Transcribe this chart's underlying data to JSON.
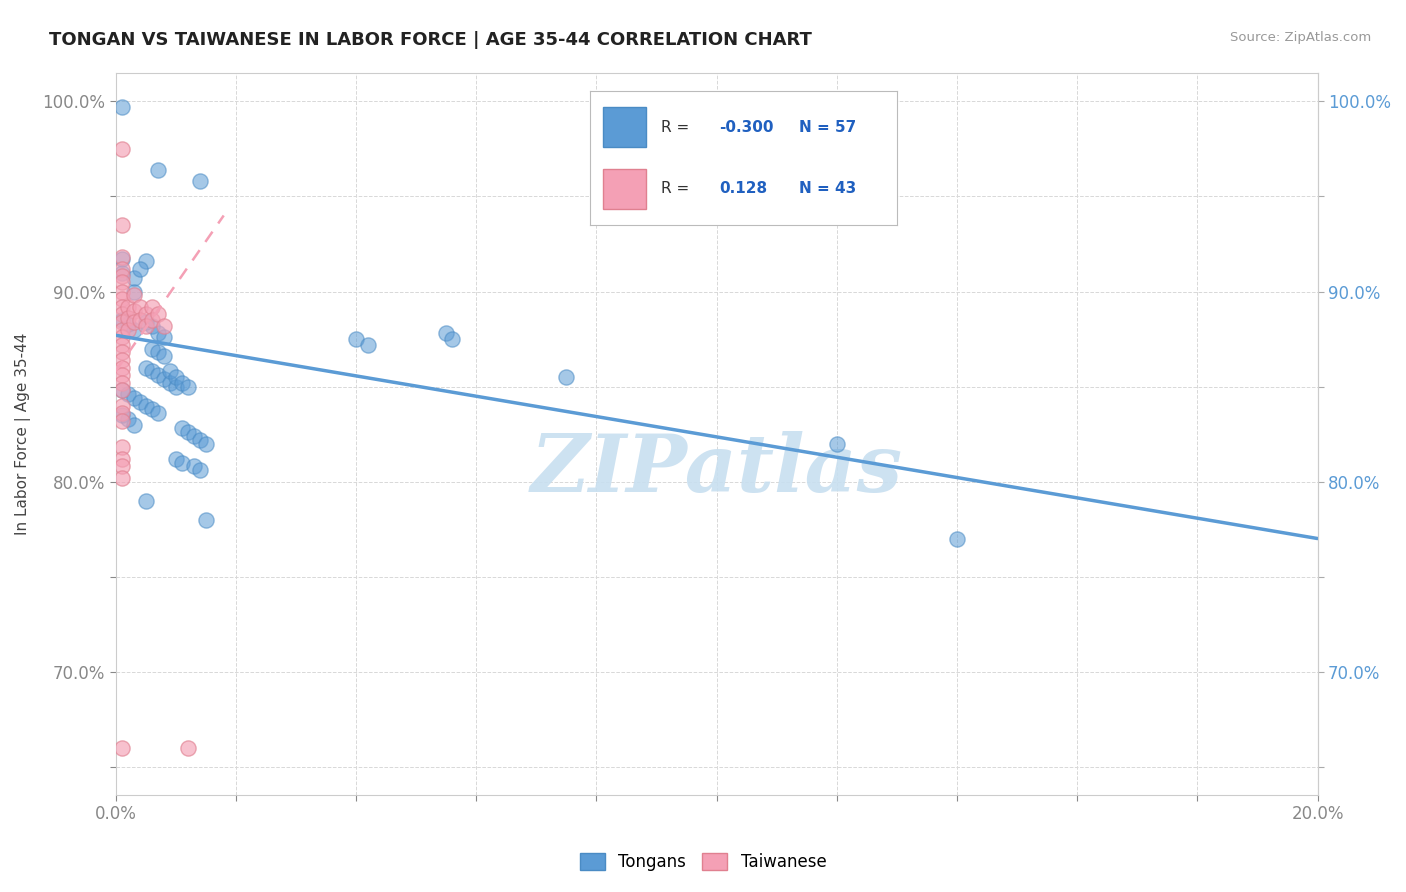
{
  "title": "TONGAN VS TAIWANESE IN LABOR FORCE | AGE 35-44 CORRELATION CHART",
  "source_text": "Source: ZipAtlas.com",
  "ylabel": "In Labor Force | Age 35-44",
  "xlim": [
    0.0,
    0.2
  ],
  "ylim": [
    0.635,
    1.015
  ],
  "xtick_positions": [
    0.0,
    0.02,
    0.04,
    0.06,
    0.08,
    0.1,
    0.12,
    0.14,
    0.16,
    0.18,
    0.2
  ],
  "xticklabels": [
    "0.0%",
    "",
    "",
    "",
    "",
    "",
    "",
    "",
    "",
    "",
    "20.0%"
  ],
  "ytick_positions": [
    0.65,
    0.7,
    0.75,
    0.8,
    0.85,
    0.9,
    0.95,
    1.0
  ],
  "yticklabels": [
    "",
    "70.0%",
    "",
    "80.0%",
    "",
    "90.0%",
    "",
    "100.0%"
  ],
  "tongan_R": -0.3,
  "tongan_N": 57,
  "taiwanese_R": 0.128,
  "taiwanese_N": 43,
  "tongan_color": "#5b9bd5",
  "tongan_edge": "#4a8bc4",
  "taiwanese_color": "#f4a0b5",
  "taiwanese_edge": "#e08090",
  "tongan_scatter": [
    [
      0.001,
      0.997
    ],
    [
      0.007,
      0.964
    ],
    [
      0.014,
      0.958
    ],
    [
      0.001,
      0.917
    ],
    [
      0.001,
      0.91
    ],
    [
      0.003,
      0.907
    ],
    [
      0.003,
      0.9
    ],
    [
      0.005,
      0.916
    ],
    [
      0.004,
      0.912
    ],
    [
      0.001,
      0.885
    ],
    [
      0.002,
      0.883
    ],
    [
      0.003,
      0.88
    ],
    [
      0.005,
      0.884
    ],
    [
      0.006,
      0.882
    ],
    [
      0.007,
      0.878
    ],
    [
      0.008,
      0.876
    ],
    [
      0.006,
      0.87
    ],
    [
      0.007,
      0.868
    ],
    [
      0.008,
      0.866
    ],
    [
      0.005,
      0.86
    ],
    [
      0.006,
      0.858
    ],
    [
      0.007,
      0.856
    ],
    [
      0.008,
      0.854
    ],
    [
      0.009,
      0.852
    ],
    [
      0.01,
      0.85
    ],
    [
      0.001,
      0.848
    ],
    [
      0.002,
      0.846
    ],
    [
      0.003,
      0.844
    ],
    [
      0.004,
      0.842
    ],
    [
      0.005,
      0.84
    ],
    [
      0.006,
      0.838
    ],
    [
      0.007,
      0.836
    ],
    [
      0.009,
      0.858
    ],
    [
      0.01,
      0.855
    ],
    [
      0.011,
      0.852
    ],
    [
      0.012,
      0.85
    ],
    [
      0.001,
      0.835
    ],
    [
      0.002,
      0.833
    ],
    [
      0.003,
      0.83
    ],
    [
      0.011,
      0.828
    ],
    [
      0.012,
      0.826
    ],
    [
      0.013,
      0.824
    ],
    [
      0.014,
      0.822
    ],
    [
      0.015,
      0.82
    ],
    [
      0.01,
      0.812
    ],
    [
      0.011,
      0.81
    ],
    [
      0.013,
      0.808
    ],
    [
      0.014,
      0.806
    ],
    [
      0.005,
      0.79
    ],
    [
      0.015,
      0.78
    ],
    [
      0.04,
      0.875
    ],
    [
      0.042,
      0.872
    ],
    [
      0.055,
      0.878
    ],
    [
      0.056,
      0.875
    ],
    [
      0.075,
      0.855
    ],
    [
      0.12,
      0.82
    ],
    [
      0.14,
      0.77
    ]
  ],
  "taiwanese_scatter": [
    [
      0.001,
      0.975
    ],
    [
      0.001,
      0.935
    ],
    [
      0.001,
      0.918
    ],
    [
      0.001,
      0.912
    ],
    [
      0.001,
      0.908
    ],
    [
      0.001,
      0.905
    ],
    [
      0.001,
      0.9
    ],
    [
      0.001,
      0.896
    ],
    [
      0.001,
      0.892
    ],
    [
      0.001,
      0.888
    ],
    [
      0.001,
      0.884
    ],
    [
      0.001,
      0.88
    ],
    [
      0.001,
      0.876
    ],
    [
      0.001,
      0.872
    ],
    [
      0.001,
      0.868
    ],
    [
      0.001,
      0.864
    ],
    [
      0.001,
      0.86
    ],
    [
      0.001,
      0.856
    ],
    [
      0.001,
      0.852
    ],
    [
      0.001,
      0.848
    ],
    [
      0.001,
      0.84
    ],
    [
      0.001,
      0.836
    ],
    [
      0.001,
      0.832
    ],
    [
      0.002,
      0.892
    ],
    [
      0.002,
      0.886
    ],
    [
      0.002,
      0.88
    ],
    [
      0.003,
      0.898
    ],
    [
      0.003,
      0.89
    ],
    [
      0.003,
      0.884
    ],
    [
      0.004,
      0.892
    ],
    [
      0.004,
      0.885
    ],
    [
      0.005,
      0.888
    ],
    [
      0.005,
      0.882
    ],
    [
      0.006,
      0.892
    ],
    [
      0.006,
      0.885
    ],
    [
      0.007,
      0.888
    ],
    [
      0.008,
      0.882
    ],
    [
      0.001,
      0.818
    ],
    [
      0.001,
      0.812
    ],
    [
      0.001,
      0.808
    ],
    [
      0.001,
      0.802
    ],
    [
      0.001,
      0.66
    ],
    [
      0.012,
      0.66
    ]
  ],
  "tongan_trend_x": [
    0.0,
    0.2
  ],
  "tongan_trend_y": [
    0.877,
    0.77
  ],
  "taiwanese_trend_x": [
    0.0,
    0.018
  ],
  "taiwanese_trend_y": [
    0.858,
    0.94
  ],
  "bg_color": "#ffffff",
  "grid_color": "#d8d8d8",
  "title_color": "#222222",
  "axis_label_color": "#5b9bd5",
  "watermark_color": "#c8dff0",
  "watermark_text": "ZIPatlas"
}
